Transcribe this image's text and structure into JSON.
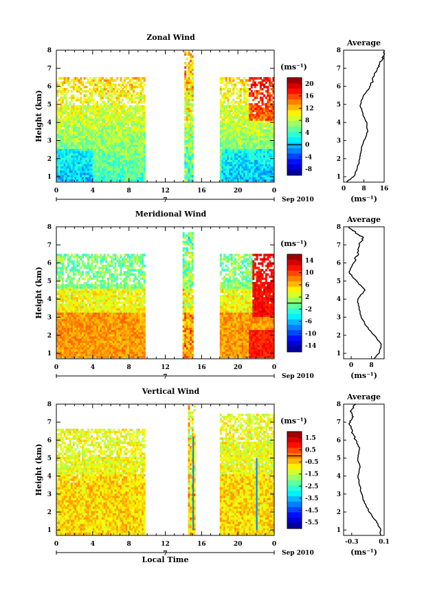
{
  "chart_data": [
    {
      "type": "heatmap",
      "title": "Zonal Wind",
      "ylabel": "Height (km)",
      "x_ticks": [
        "0",
        "4",
        "8",
        "12",
        "16",
        "20",
        "0"
      ],
      "y_ticks": [
        "1",
        "2",
        "3",
        "4",
        "5",
        "6",
        "7",
        "8"
      ],
      "xlim": [
        0,
        24
      ],
      "ylim": [
        0.7,
        8
      ],
      "day_label": "7",
      "month_label": "Sep 2010",
      "colorbar": {
        "unit": "(ms⁻¹)",
        "ticks": [
          "20",
          "16",
          "12",
          "8",
          "4",
          "0",
          "-4",
          "-8"
        ],
        "min": -10,
        "max": 22
      },
      "coverage": [
        {
          "x0": 0,
          "x1": 9.7,
          "top": 6.5
        },
        {
          "x0": 14.1,
          "x1": 15,
          "top": 7.9
        },
        {
          "x0": 18,
          "x1": 24,
          "top": 6.5
        }
      ],
      "avg_profile": {
        "title": "Average",
        "xlabel": "(ms⁻¹)",
        "x_ticks": [
          "0",
          "8",
          "16"
        ],
        "xlim": [
          0,
          16
        ],
        "heights": [
          0.7,
          1.0,
          1.5,
          2.0,
          2.5,
          3.0,
          3.5,
          4.0,
          4.5,
          5.0,
          5.5,
          6.0,
          6.5,
          7.0,
          7.3,
          7.6,
          8.0
        ],
        "values": [
          1,
          4,
          5.5,
          6.5,
          7,
          8,
          9.5,
          9,
          7.5,
          6.5,
          8,
          10.5,
          12,
          13.5,
          14.5,
          15.5,
          16
        ]
      }
    },
    {
      "type": "heatmap",
      "title": "Meridional Wind",
      "ylabel": "Height (km)",
      "x_ticks": [
        "0",
        "4",
        "8",
        "12",
        "16",
        "20",
        "0"
      ],
      "y_ticks": [
        "1",
        "2",
        "3",
        "4",
        "5",
        "6",
        "7",
        "8"
      ],
      "xlim": [
        0,
        24
      ],
      "ylim": [
        0.7,
        8
      ],
      "day_label": "7",
      "month_label": "Sep 2010",
      "colorbar": {
        "unit": "(ms⁻¹)",
        "ticks": [
          "14",
          "10",
          "6",
          "2",
          "-2",
          "-6",
          "-10",
          "-14"
        ],
        "min": -16,
        "max": 16
      },
      "coverage": [
        {
          "x0": 0,
          "x1": 9.7,
          "top": 6.4
        },
        {
          "x0": 13.9,
          "x1": 15,
          "top": 7.7
        },
        {
          "x0": 18,
          "x1": 24,
          "top": 6.5
        }
      ],
      "avg_profile": {
        "title": "Average",
        "xlabel": "(ms⁻¹)",
        "x_ticks": [
          "0",
          "8"
        ],
        "xlim": [
          -3,
          13
        ],
        "heights": [
          0.7,
          1.0,
          1.5,
          2.0,
          2.5,
          3.0,
          3.5,
          4.0,
          4.5,
          5.0,
          5.5,
          6.0,
          6.5,
          7.0,
          7.4,
          7.7,
          8.0
        ],
        "values": [
          9,
          11,
          12,
          9,
          6,
          4,
          3,
          2.5,
          5.5,
          2,
          -1,
          1,
          2.5,
          3,
          5,
          1.5,
          -1
        ]
      }
    },
    {
      "type": "heatmap",
      "title": "Vertical Wind",
      "ylabel": "Height (km)",
      "xlabel": "Local Time",
      "x_ticks": [
        "0",
        "4",
        "8",
        "12",
        "16",
        "20",
        "0"
      ],
      "y_ticks": [
        "1",
        "2",
        "3",
        "4",
        "5",
        "6",
        "7",
        "8"
      ],
      "xlim": [
        0,
        24
      ],
      "ylim": [
        0.7,
        8
      ],
      "day_label": "7",
      "month_label": "Sep 2010",
      "colorbar": {
        "unit": "(ms⁻¹)",
        "ticks": [
          "1.5",
          "0.5",
          "-0.5",
          "-1.5",
          "-2.5",
          "-3.5",
          "-4.5",
          "-5.5"
        ],
        "min": -6,
        "max": 2
      },
      "coverage": [
        {
          "x0": 0,
          "x1": 9.7,
          "top": 6.6
        },
        {
          "x0": 14.5,
          "x1": 15.2,
          "top": 7.9
        },
        {
          "x0": 18,
          "x1": 24,
          "top": 7.4
        }
      ],
      "avg_profile": {
        "title": "Average",
        "xlabel": "(ms⁻¹)",
        "x_ticks": [
          "-0.3",
          "0.1"
        ],
        "xlim": [
          -0.4,
          0.1
        ],
        "heights": [
          0.7,
          1.0,
          1.5,
          2.0,
          2.5,
          3.0,
          3.5,
          4.0,
          4.5,
          5.0,
          5.5,
          6.0,
          6.5,
          7.0,
          7.3,
          7.6,
          8.0
        ],
        "values": [
          0.05,
          0.06,
          0.0,
          -0.08,
          -0.14,
          -0.18,
          -0.2,
          -0.22,
          -0.2,
          -0.23,
          -0.2,
          -0.25,
          -0.3,
          -0.33,
          -0.28,
          -0.32,
          -0.25
        ]
      }
    }
  ]
}
